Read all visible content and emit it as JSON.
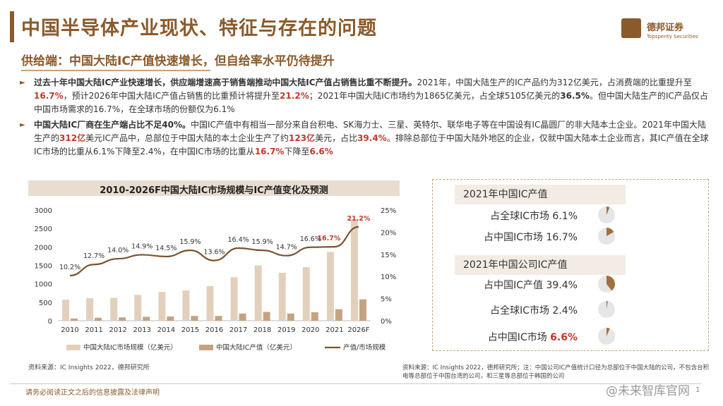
{
  "title": "中国半导体产业现状、特征与存在的问题",
  "logo": {
    "name": "德邦证券",
    "tagline": "Topsperity Securities"
  },
  "subtitle": "供给端：中国大陆IC产值快速增长，但自给率水平仍待提升",
  "para1": {
    "s1": "过去十年中国大陆IC产业快速增长，供应端增速高于销售端推动中国大陆IC产值占销售比重不断提升。",
    "s2": "2021年，中国大陆生产的IC产品约为312亿美元，占消费端的比重提升至",
    "h1": "16.7%",
    "s3": "，预计2026年中国大陆IC产值占销售的比重预计将提升至",
    "h2": "21.2%",
    "s4": "；2021年中国大陆IC市场约为1865亿美元，占全球5105亿美元的",
    "h3": "36.5%",
    "s5": "。但中国大陆生产的IC产品仅占中国市场需求的16.7%，在全球市场的份额仅为6.1%"
  },
  "para2": {
    "s1": "中国大陆IC厂商在生产端占比不足40%。",
    "s2": "中国IC产值中有相当一部分来自台积电、SK海力士、三星、英特尔、联华电子等在中国设有IC晶圆厂的非大陆本土企业。2021年中国大陆生产的",
    "h1": "312亿",
    "s3": "美元IC产品中，总部位于中国大陆的本土企业生产了约",
    "h2": "123亿",
    "s4": "美元，占比",
    "h3": "39.4%",
    "s5": "。排除总部位于中国大陆外地区的企业，仅就中国大陆本土企业而言，其IC产值在全球IC市场的比重从6.1%下降至2.4%，在中国IC市场的比重从",
    "h4": "16.7%",
    "s6": "下降至",
    "h5": "6.6%"
  },
  "chart_title": "2010-2026F中国大陆IC市场规模与IC产值变化及预测",
  "chart_data": {
    "type": "bar",
    "categories": [
      "2010",
      "2011",
      "2012",
      "2013",
      "2014",
      "2015",
      "2016",
      "2017",
      "2018",
      "2019",
      "2020",
      "2021",
      "2026F"
    ],
    "series": [
      {
        "name": "中国大陆IC市场规模（亿美元）",
        "type": "bar",
        "axis": "left",
        "values": [
          570,
          610,
          620,
          700,
          780,
          820,
          940,
          1180,
          1500,
          1300,
          1450,
          1865,
          2750
        ]
      },
      {
        "name": "中国大陆IC产值（亿美元）",
        "type": "bar",
        "axis": "left",
        "values": [
          60,
          80,
          90,
          105,
          115,
          130,
          130,
          195,
          240,
          195,
          230,
          312,
          580
        ]
      },
      {
        "name": "产值/市场规模",
        "type": "line",
        "axis": "right",
        "values": [
          10.2,
          12.7,
          14.0,
          14.9,
          14.5,
          15.9,
          13.6,
          16.4,
          15.9,
          14.7,
          16.6,
          16.7,
          21.2
        ],
        "labels": [
          "10.2%",
          "12.7%",
          "14.0%",
          "14.9%",
          "14.5%",
          "15.9%",
          "13.6%",
          "16.4%",
          "15.9%",
          "14.7%",
          "16.6%",
          "16.7%",
          "21.2%"
        ]
      }
    ],
    "y_left": {
      "min": 0,
      "max": 3000,
      "ticks": [
        "0",
        "500",
        "1000",
        "1500",
        "2000",
        "2500",
        "3000"
      ]
    },
    "y_right": {
      "min": 0,
      "max": 25,
      "ticks": [
        "0%",
        "5%",
        "10%",
        "15%",
        "20%",
        "25%"
      ]
    },
    "highlight_labels": [
      11,
      12
    ],
    "colors": {
      "market": "#e3d0bc",
      "output": "#c4a383",
      "line": "#7a5230",
      "highlight": "#c0392b"
    }
  },
  "source_left": "资料来源：IC Insights 2022，德邦研究所",
  "right_panel": {
    "section1": "2021年中国IC产值",
    "section2": "2021年中国公司IC产值",
    "stats": [
      {
        "label": "占全球IC市场 6.1%",
        "value": 6.1,
        "red": false
      },
      {
        "label": "占中国IC市场 16.7%",
        "value": 16.7,
        "red": false
      },
      {
        "label": "占中国IC产值 39.4%",
        "value": 39.4,
        "red": false
      },
      {
        "label": "占全球IC市场 2.4%",
        "value": 2.4,
        "red": false
      },
      {
        "label_prefix": "占中国IC市场 ",
        "label_value": "6.6%",
        "value": 6.6,
        "red": true
      }
    ],
    "pie_colors": {
      "fill": "#a0713f",
      "rest": "#e6e6e6"
    }
  },
  "source_right": "资料来源：IC Insights 2022，德邦研究所；注：中国公司IC产值统计口径为总部位于中国大陆的公司，不包含台积电等总部位于中国台湾的公司，和三星等总部位于韩国的公司",
  "footer": "请务必阅读正文之后的信息披露及法律声明",
  "watermark": "@未来智库官网",
  "page": "1"
}
